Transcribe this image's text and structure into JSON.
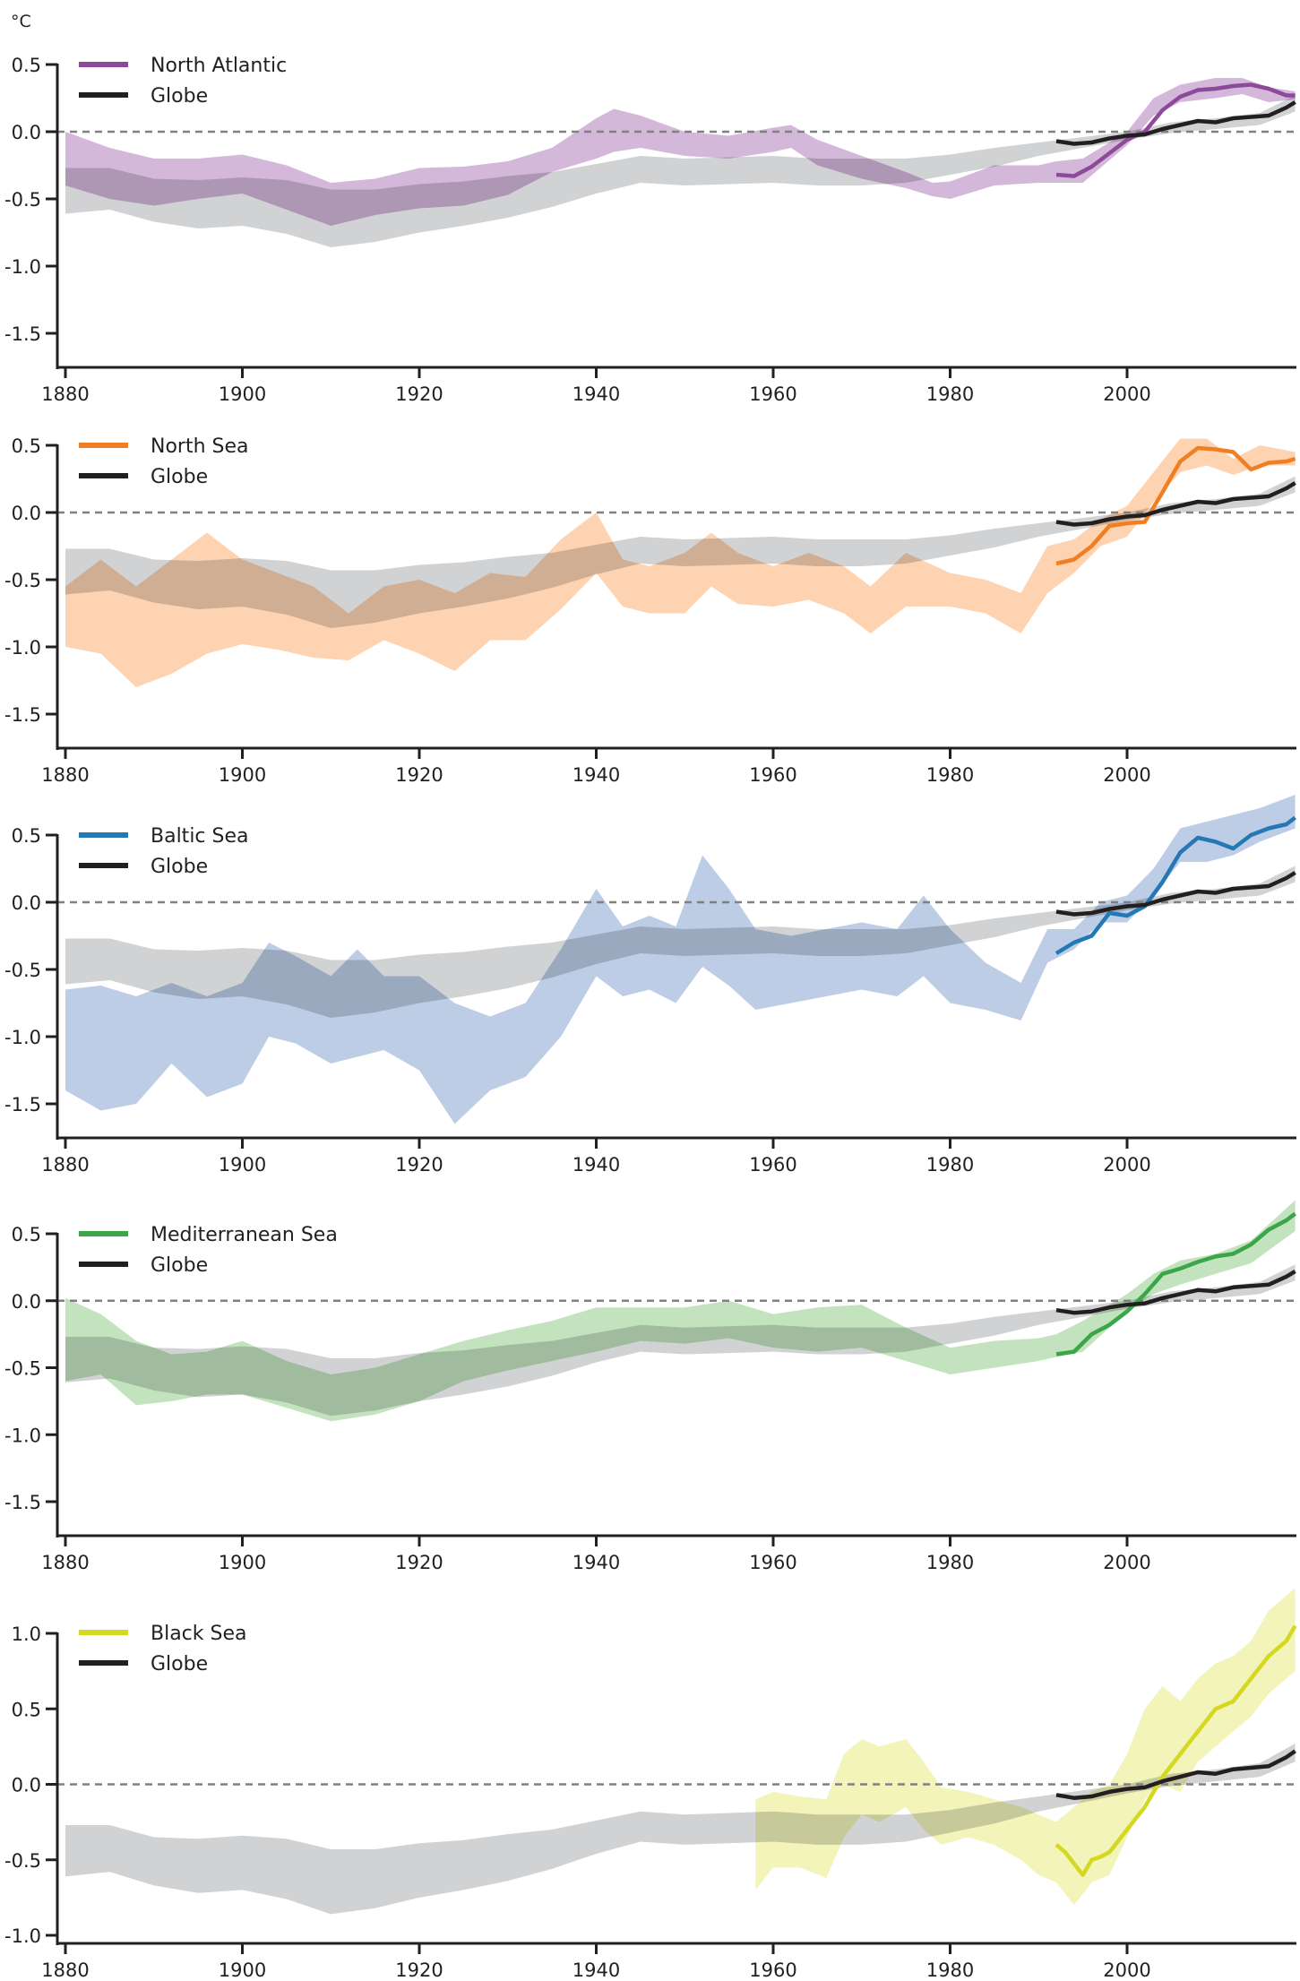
{
  "chart_data": {
    "type": "area",
    "unit_label": "°C",
    "xlim": [
      1879,
      2019
    ],
    "x_ticks": [
      1880,
      1900,
      1920,
      1940,
      1960,
      1980,
      2000
    ],
    "x_tick_labels": [
      "1880",
      "1900",
      "1920",
      "1940",
      "1960",
      "1980",
      "2000"
    ],
    "zero_reference": "dashed horizontal line at 0.0",
    "colors": {
      "globe_line": "#231f20",
      "globe_band": "#b4b6b9",
      "axis": "#231f20",
      "zero_line": "#808080"
    },
    "globe": {
      "name": "Globe",
      "band": {
        "x": [
          1880,
          1885,
          1890,
          1895,
          1900,
          1905,
          1910,
          1915,
          1920,
          1925,
          1930,
          1935,
          1940,
          1945,
          1950,
          1955,
          1960,
          1965,
          1970,
          1975,
          1980,
          1985,
          1990,
          1995,
          2000,
          2005,
          2010,
          2015,
          2019
        ],
        "upper": [
          -0.27,
          -0.27,
          -0.35,
          -0.36,
          -0.34,
          -0.36,
          -0.43,
          -0.43,
          -0.39,
          -0.37,
          -0.33,
          -0.3,
          -0.24,
          -0.18,
          -0.2,
          -0.19,
          -0.18,
          -0.2,
          -0.2,
          -0.2,
          -0.17,
          -0.12,
          -0.08,
          -0.04,
          0.0,
          0.07,
          0.1,
          0.14,
          0.27
        ],
        "lower": [
          -0.61,
          -0.58,
          -0.67,
          -0.72,
          -0.7,
          -0.76,
          -0.86,
          -0.82,
          -0.75,
          -0.7,
          -0.64,
          -0.56,
          -0.46,
          -0.38,
          -0.4,
          -0.39,
          -0.38,
          -0.4,
          -0.4,
          -0.38,
          -0.32,
          -0.26,
          -0.18,
          -0.12,
          -0.06,
          -0.01,
          0.02,
          0.05,
          0.15
        ]
      },
      "line": {
        "x": [
          1992,
          1994,
          1996,
          1998,
          2000,
          2002,
          2004,
          2006,
          2008,
          2010,
          2012,
          2014,
          2016,
          2018,
          2019
        ],
        "y": [
          -0.07,
          -0.09,
          -0.08,
          -0.05,
          -0.03,
          -0.02,
          0.02,
          0.05,
          0.08,
          0.07,
          0.1,
          0.11,
          0.12,
          0.18,
          0.22
        ]
      }
    },
    "panels": [
      {
        "name": "North Atlantic",
        "color": "#8e4a9a",
        "band_color": "#c8a6d0",
        "ylim": [
          -1.75,
          0.55
        ],
        "y_ticks": [
          0.5,
          0.0,
          -0.5,
          -1.0,
          -1.5
        ],
        "y_tick_labels": [
          "0.5",
          "0.0",
          "-0.5",
          "-1.0",
          "-1.5"
        ],
        "legend": [
          "North Atlantic",
          "Globe"
        ],
        "band": {
          "x": [
            1880,
            1885,
            1890,
            1895,
            1900,
            1905,
            1910,
            1915,
            1920,
            1925,
            1930,
            1935,
            1940,
            1942,
            1945,
            1950,
            1955,
            1960,
            1962,
            1965,
            1970,
            1975,
            1978,
            1980,
            1985,
            1990,
            1992,
            1995,
            2000,
            2003,
            2006,
            2010,
            2013,
            2016,
            2019
          ],
          "upper": [
            0.0,
            -0.12,
            -0.2,
            -0.2,
            -0.17,
            -0.25,
            -0.38,
            -0.35,
            -0.27,
            -0.26,
            -0.22,
            -0.12,
            0.1,
            0.17,
            0.12,
            0.0,
            -0.03,
            0.03,
            0.05,
            -0.06,
            -0.18,
            -0.3,
            -0.38,
            -0.37,
            -0.25,
            -0.25,
            -0.22,
            -0.2,
            0.0,
            0.25,
            0.35,
            0.4,
            0.4,
            0.33,
            0.3
          ],
          "lower": [
            -0.4,
            -0.5,
            -0.55,
            -0.5,
            -0.46,
            -0.58,
            -0.7,
            -0.62,
            -0.57,
            -0.55,
            -0.47,
            -0.3,
            -0.2,
            -0.15,
            -0.12,
            -0.18,
            -0.2,
            -0.15,
            -0.12,
            -0.25,
            -0.35,
            -0.42,
            -0.48,
            -0.5,
            -0.4,
            -0.38,
            -0.38,
            -0.38,
            -0.1,
            0.12,
            0.22,
            0.25,
            0.28,
            0.22,
            0.24
          ]
        },
        "line": {
          "x": [
            1992,
            1994,
            1996,
            1998,
            2000,
            2002,
            2004,
            2006,
            2008,
            2010,
            2012,
            2014,
            2016,
            2018,
            2019
          ],
          "y": [
            -0.32,
            -0.33,
            -0.26,
            -0.16,
            -0.06,
            0.0,
            0.16,
            0.26,
            0.31,
            0.32,
            0.34,
            0.35,
            0.32,
            0.27,
            0.27
          ]
        }
      },
      {
        "name": "North Sea",
        "color": "#f07f24",
        "band_color": "#fdc89e",
        "ylim": [
          -1.75,
          0.55
        ],
        "y_ticks": [
          0.5,
          0.0,
          -0.5,
          -1.0,
          -1.5
        ],
        "y_tick_labels": [
          "0.5",
          "0.0",
          "-0.5",
          "-1.0",
          "-1.5"
        ],
        "legend": [
          "North Sea",
          "Globe"
        ],
        "band": {
          "x": [
            1880,
            1884,
            1888,
            1892,
            1896,
            1900,
            1904,
            1908,
            1912,
            1916,
            1920,
            1924,
            1928,
            1932,
            1936,
            1940,
            1943,
            1946,
            1950,
            1953,
            1956,
            1960,
            1964,
            1968,
            1971,
            1975,
            1980,
            1984,
            1988,
            1991,
            1994,
            1997,
            2000,
            2003,
            2006,
            2009,
            2012,
            2015,
            2019
          ],
          "upper": [
            -0.55,
            -0.35,
            -0.55,
            -0.35,
            -0.15,
            -0.35,
            -0.45,
            -0.55,
            -0.75,
            -0.55,
            -0.5,
            -0.6,
            -0.45,
            -0.48,
            -0.2,
            0.0,
            -0.35,
            -0.4,
            -0.3,
            -0.15,
            -0.3,
            -0.4,
            -0.3,
            -0.4,
            -0.55,
            -0.3,
            -0.45,
            -0.5,
            -0.6,
            -0.25,
            -0.2,
            -0.05,
            0.05,
            0.3,
            0.55,
            0.55,
            0.4,
            0.5,
            0.45
          ],
          "lower": [
            -1.0,
            -1.05,
            -1.3,
            -1.2,
            -1.05,
            -0.98,
            -1.02,
            -1.08,
            -1.1,
            -0.95,
            -1.05,
            -1.18,
            -0.95,
            -0.95,
            -0.72,
            -0.45,
            -0.7,
            -0.75,
            -0.75,
            -0.55,
            -0.68,
            -0.7,
            -0.65,
            -0.75,
            -0.9,
            -0.7,
            -0.7,
            -0.75,
            -0.9,
            -0.6,
            -0.45,
            -0.25,
            -0.18,
            0.08,
            0.3,
            0.35,
            0.28,
            0.35,
            0.35
          ]
        },
        "line": {
          "x": [
            1992,
            1994,
            1996,
            1998,
            2000,
            2002,
            2004,
            2006,
            2008,
            2010,
            2012,
            2014,
            2016,
            2018,
            2019
          ],
          "y": [
            -0.38,
            -0.35,
            -0.25,
            -0.1,
            -0.08,
            -0.07,
            0.15,
            0.38,
            0.48,
            0.47,
            0.45,
            0.32,
            0.37,
            0.38,
            0.4
          ]
        }
      },
      {
        "name": "Baltic Sea",
        "color": "#2479b5",
        "band_color": "#adc1e0",
        "ylim": [
          -1.75,
          0.55
        ],
        "y_ticks": [
          0.5,
          0.0,
          -0.5,
          -1.0,
          -1.5
        ],
        "y_tick_labels": [
          "0.5",
          "0.0",
          "-0.5",
          "-1.0",
          "-1.5"
        ],
        "legend": [
          "Baltic Sea",
          "Globe"
        ],
        "band": {
          "x": [
            1880,
            1884,
            1888,
            1892,
            1896,
            1900,
            1903,
            1906,
            1910,
            1913,
            1916,
            1920,
            1924,
            1928,
            1932,
            1936,
            1940,
            1943,
            1946,
            1949,
            1952,
            1955,
            1958,
            1962,
            1966,
            1970,
            1974,
            1977,
            1980,
            1984,
            1988,
            1991,
            1994,
            1997,
            2000,
            2003,
            2006,
            2009,
            2012,
            2015,
            2019
          ],
          "upper": [
            -0.65,
            -0.62,
            -0.7,
            -0.6,
            -0.7,
            -0.6,
            -0.3,
            -0.4,
            -0.55,
            -0.35,
            -0.55,
            -0.55,
            -0.75,
            -0.85,
            -0.75,
            -0.35,
            0.1,
            -0.18,
            -0.1,
            -0.18,
            0.35,
            0.1,
            -0.2,
            -0.25,
            -0.2,
            -0.15,
            -0.2,
            0.05,
            -0.2,
            -0.45,
            -0.6,
            -0.2,
            -0.2,
            0.0,
            0.05,
            0.25,
            0.55,
            0.6,
            0.65,
            0.7,
            0.8
          ],
          "lower": [
            -1.4,
            -1.55,
            -1.5,
            -1.2,
            -1.45,
            -1.35,
            -1.0,
            -1.05,
            -1.2,
            -1.15,
            -1.1,
            -1.25,
            -1.65,
            -1.4,
            -1.3,
            -1.0,
            -0.55,
            -0.7,
            -0.65,
            -0.75,
            -0.48,
            -0.62,
            -0.8,
            -0.75,
            -0.7,
            -0.65,
            -0.7,
            -0.55,
            -0.75,
            -0.8,
            -0.88,
            -0.45,
            -0.35,
            -0.15,
            -0.15,
            0.05,
            0.3,
            0.3,
            0.35,
            0.45,
            0.55
          ]
        },
        "line": {
          "x": [
            1992,
            1994,
            1996,
            1998,
            2000,
            2002,
            2004,
            2006,
            2008,
            2010,
            2012,
            2014,
            2016,
            2018,
            2019
          ],
          "y": [
            -0.38,
            -0.3,
            -0.25,
            -0.08,
            -0.1,
            -0.03,
            0.15,
            0.37,
            0.48,
            0.45,
            0.4,
            0.5,
            0.55,
            0.58,
            0.63
          ]
        }
      },
      {
        "name": "Mediterranean Sea",
        "color": "#3aa648",
        "band_color": "#b4dcae",
        "ylim": [
          -1.75,
          0.55
        ],
        "y_ticks": [
          0.5,
          0.0,
          -0.5,
          -1.0,
          -1.5
        ],
        "y_tick_labels": [
          "0.5",
          "0.0",
          "-0.5",
          "-1.0",
          "-1.5"
        ],
        "legend": [
          "Mediterranean Sea",
          "Globe"
        ],
        "band": {
          "x": [
            1880,
            1884,
            1888,
            1892,
            1896,
            1900,
            1905,
            1910,
            1915,
            1920,
            1925,
            1930,
            1935,
            1940,
            1945,
            1950,
            1955,
            1960,
            1965,
            1970,
            1975,
            1980,
            1985,
            1990,
            1992,
            1995,
            2000,
            2003,
            2006,
            2010,
            2014,
            2019
          ],
          "upper": [
            0.02,
            -0.1,
            -0.3,
            -0.4,
            -0.38,
            -0.3,
            -0.45,
            -0.55,
            -0.5,
            -0.4,
            -0.3,
            -0.22,
            -0.15,
            -0.05,
            -0.05,
            -0.05,
            0.0,
            -0.1,
            -0.05,
            -0.03,
            -0.2,
            -0.35,
            -0.3,
            -0.28,
            -0.25,
            -0.15,
            0.05,
            0.2,
            0.3,
            0.35,
            0.45,
            0.75
          ],
          "lower": [
            -0.6,
            -0.55,
            -0.78,
            -0.75,
            -0.7,
            -0.7,
            -0.8,
            -0.9,
            -0.85,
            -0.75,
            -0.6,
            -0.52,
            -0.45,
            -0.38,
            -0.3,
            -0.32,
            -0.28,
            -0.35,
            -0.38,
            -0.35,
            -0.45,
            -0.55,
            -0.5,
            -0.45,
            -0.42,
            -0.38,
            -0.08,
            0.05,
            0.12,
            0.2,
            0.28,
            0.52
          ]
        },
        "line": {
          "x": [
            1992,
            1994,
            1996,
            1998,
            2000,
            2002,
            2004,
            2006,
            2008,
            2010,
            2012,
            2014,
            2016,
            2018,
            2019
          ],
          "y": [
            -0.4,
            -0.38,
            -0.25,
            -0.18,
            -0.08,
            0.05,
            0.2,
            0.24,
            0.29,
            0.33,
            0.35,
            0.42,
            0.53,
            0.6,
            0.65
          ]
        }
      },
      {
        "name": "Black Sea",
        "color": "#d5d821",
        "band_color": "#eff1a8",
        "ylim": [
          -1.02,
          1.12
        ],
        "y_ticks": [
          1.0,
          0.5,
          0.0,
          -0.5,
          -1.0
        ],
        "y_tick_labels": [
          "1.0",
          "0.5",
          "0.0",
          "-0.5",
          "-1.0"
        ],
        "legend": [
          "Black Sea",
          "Globe"
        ],
        "band": {
          "x": [
            1958,
            1960,
            1963,
            1966,
            1968,
            1970,
            1972,
            1975,
            1977,
            1979,
            1982,
            1985,
            1988,
            1990,
            1992,
            1994,
            1996,
            1998,
            2000,
            2002,
            2004,
            2006,
            2008,
            2010,
            2012,
            2014,
            2016,
            2019
          ],
          "upper": [
            -0.1,
            -0.05,
            -0.08,
            -0.1,
            0.2,
            0.3,
            0.25,
            0.3,
            0.15,
            -0.02,
            -0.05,
            -0.1,
            -0.15,
            -0.2,
            -0.25,
            -0.15,
            -0.05,
            0.0,
            0.2,
            0.5,
            0.65,
            0.55,
            0.7,
            0.8,
            0.85,
            0.95,
            1.15,
            1.3
          ],
          "lower": [
            -0.7,
            -0.55,
            -0.55,
            -0.62,
            -0.35,
            -0.2,
            -0.25,
            -0.15,
            -0.3,
            -0.4,
            -0.35,
            -0.4,
            -0.5,
            -0.6,
            -0.65,
            -0.8,
            -0.65,
            -0.6,
            -0.35,
            -0.1,
            0.0,
            -0.05,
            0.15,
            0.25,
            0.35,
            0.45,
            0.6,
            0.75
          ]
        },
        "line": {
          "x": [
            1992,
            1993,
            1995,
            1996,
            1997,
            1998,
            2000,
            2002,
            2004,
            2006,
            2008,
            2010,
            2012,
            2014,
            2016,
            2018,
            2019
          ],
          "y": [
            -0.4,
            -0.45,
            -0.6,
            -0.5,
            -0.48,
            -0.45,
            -0.3,
            -0.15,
            0.05,
            0.2,
            0.35,
            0.5,
            0.55,
            0.7,
            0.85,
            0.95,
            1.05
          ]
        }
      }
    ]
  }
}
